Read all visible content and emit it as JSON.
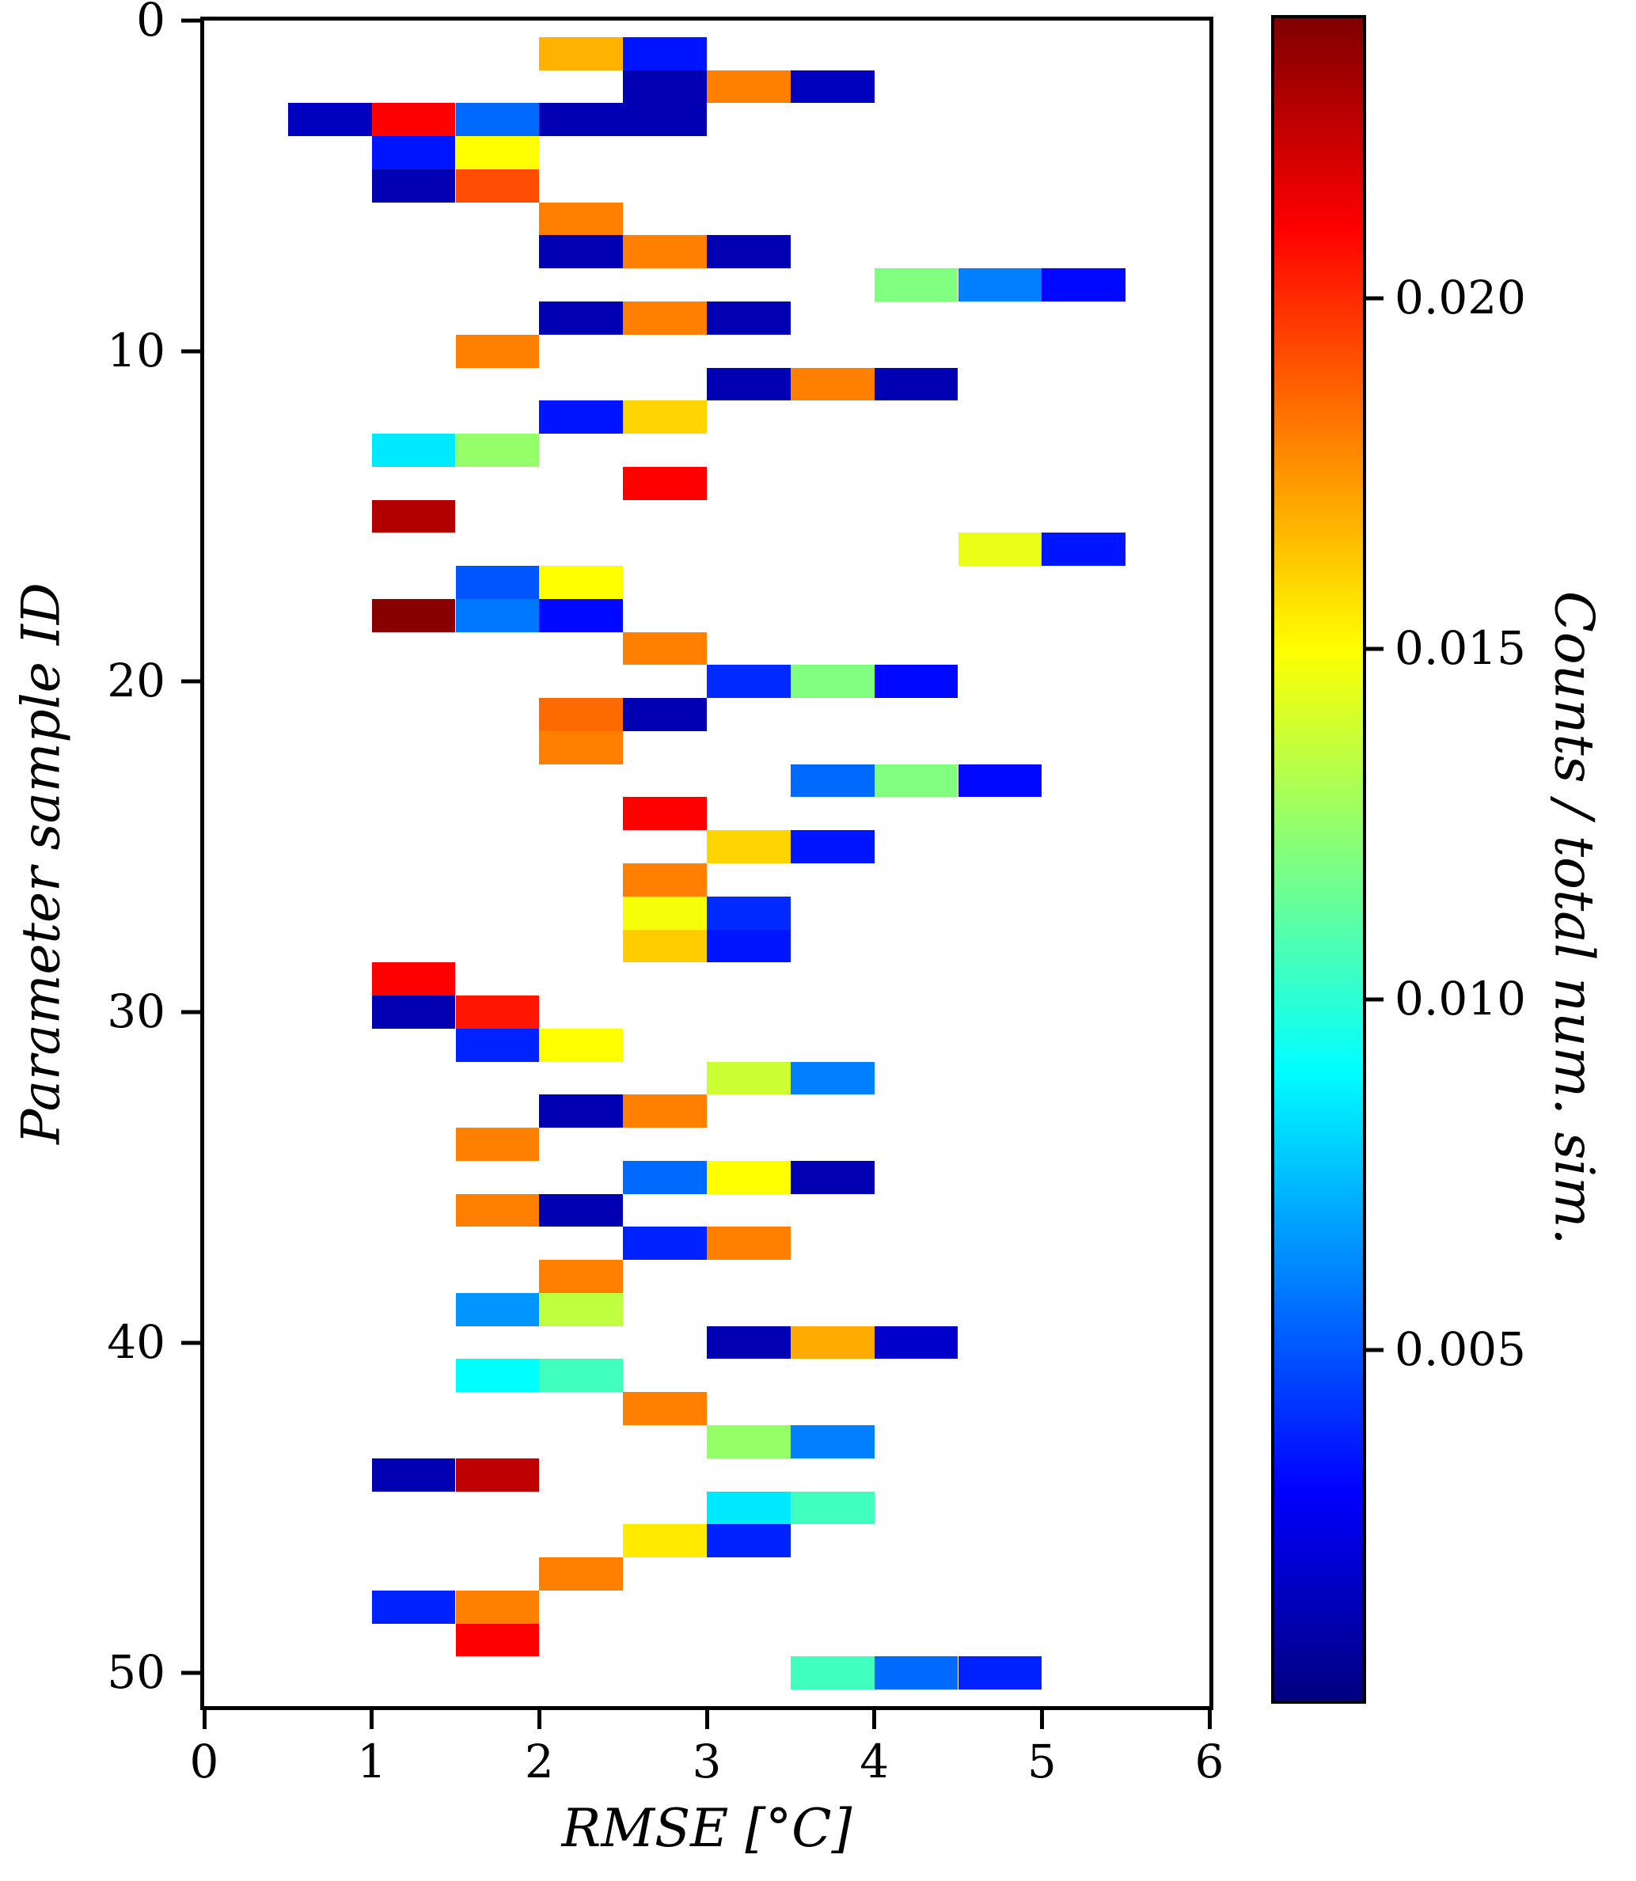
{
  "chart_data": {
    "type": "heatmap",
    "xlabel": "RMSE [°C]",
    "ylabel": "Parameter sample ID",
    "colorbar_label": "Counts / total num. sim.",
    "colormap": "jet",
    "x_range": [
      0,
      6
    ],
    "y_rows": 51,
    "x_ticks": [
      0,
      1,
      2,
      3,
      4,
      5,
      6
    ],
    "y_ticks": [
      0,
      10,
      20,
      30,
      40,
      50
    ],
    "vmin": 0,
    "vmax": 0.024,
    "bin_width_rmse": 0.5,
    "colorbar_ticks": [
      {
        "value": 0.02,
        "label": "0.020"
      },
      {
        "value": 0.015,
        "label": "0.015"
      },
      {
        "value": 0.01,
        "label": "0.010"
      },
      {
        "value": 0.005,
        "label": "0.005"
      }
    ],
    "cells": [
      [
        0,
        2.0,
        2.5,
        0.0168
      ],
      [
        0,
        2.5,
        3.0,
        0.0035
      ],
      [
        1,
        2.5,
        3.0,
        0.0012
      ],
      [
        1,
        3.0,
        3.5,
        0.018
      ],
      [
        1,
        3.5,
        4.0,
        0.0015
      ],
      [
        2,
        0.5,
        1.0,
        0.0015
      ],
      [
        2,
        1.0,
        1.5,
        0.021
      ],
      [
        2,
        1.5,
        2.0,
        0.0055
      ],
      [
        2,
        2.0,
        2.5,
        0.0012
      ],
      [
        2,
        2.5,
        3.0,
        0.0012
      ],
      [
        3,
        1.0,
        1.5,
        0.0035
      ],
      [
        3,
        1.5,
        2.0,
        0.015
      ],
      [
        4,
        1.0,
        1.5,
        0.0012
      ],
      [
        4,
        1.5,
        2.0,
        0.0192
      ],
      [
        5,
        2.0,
        2.5,
        0.018
      ],
      [
        6,
        2.0,
        2.5,
        0.0012
      ],
      [
        6,
        2.5,
        3.0,
        0.018
      ],
      [
        6,
        3.0,
        3.5,
        0.0012
      ],
      [
        7,
        4.0,
        4.5,
        0.012
      ],
      [
        7,
        4.5,
        5.0,
        0.006
      ],
      [
        7,
        5.0,
        5.5,
        0.0032
      ],
      [
        8,
        2.0,
        2.5,
        0.0012
      ],
      [
        8,
        2.5,
        3.0,
        0.018
      ],
      [
        8,
        3.0,
        3.5,
        0.0012
      ],
      [
        9,
        1.5,
        2.0,
        0.018
      ],
      [
        10,
        3.0,
        3.5,
        0.0012
      ],
      [
        10,
        3.5,
        4.0,
        0.018
      ],
      [
        10,
        4.0,
        4.5,
        0.0012
      ],
      [
        11,
        2.0,
        2.5,
        0.0035
      ],
      [
        11,
        2.5,
        3.0,
        0.016
      ],
      [
        12,
        1.0,
        1.5,
        0.0085
      ],
      [
        12,
        1.5,
        2.0,
        0.0125
      ],
      [
        13,
        2.5,
        3.0,
        0.021
      ],
      [
        14,
        1.0,
        1.5,
        0.0228
      ],
      [
        15,
        4.5,
        5.0,
        0.0145
      ],
      [
        15,
        5.0,
        5.5,
        0.0035
      ],
      [
        16,
        1.5,
        2.0,
        0.005
      ],
      [
        16,
        2.0,
        2.5,
        0.015
      ],
      [
        17,
        1.0,
        1.5,
        0.0238
      ],
      [
        17,
        1.5,
        2.0,
        0.0058
      ],
      [
        17,
        2.0,
        2.5,
        0.0032
      ],
      [
        18,
        2.5,
        3.0,
        0.018
      ],
      [
        19,
        3.0,
        3.5,
        0.004
      ],
      [
        19,
        3.5,
        4.0,
        0.012
      ],
      [
        19,
        4.0,
        4.5,
        0.0032
      ],
      [
        20,
        2.0,
        2.5,
        0.0185
      ],
      [
        20,
        2.5,
        3.0,
        0.0012
      ],
      [
        21,
        2.0,
        2.5,
        0.018
      ],
      [
        22,
        3.5,
        4.0,
        0.0055
      ],
      [
        22,
        4.0,
        4.5,
        0.012
      ],
      [
        22,
        4.5,
        5.0,
        0.0032
      ],
      [
        23,
        2.5,
        3.0,
        0.021
      ],
      [
        24,
        3.0,
        3.5,
        0.016
      ],
      [
        24,
        3.5,
        4.0,
        0.0035
      ],
      [
        25,
        2.5,
        3.0,
        0.018
      ],
      [
        26,
        2.5,
        3.0,
        0.0148
      ],
      [
        26,
        3.0,
        3.5,
        0.004
      ],
      [
        27,
        2.5,
        3.0,
        0.0162
      ],
      [
        27,
        3.0,
        3.5,
        0.0035
      ],
      [
        28,
        1.0,
        1.5,
        0.021
      ],
      [
        29,
        1.0,
        1.5,
        0.0012
      ],
      [
        29,
        1.5,
        2.0,
        0.0205
      ],
      [
        30,
        1.5,
        2.0,
        0.0038
      ],
      [
        30,
        2.0,
        2.5,
        0.015
      ],
      [
        31,
        3.0,
        3.5,
        0.0138
      ],
      [
        31,
        3.5,
        4.0,
        0.006
      ],
      [
        32,
        2.0,
        2.5,
        0.0012
      ],
      [
        32,
        2.5,
        3.0,
        0.018
      ],
      [
        33,
        1.5,
        2.0,
        0.018
      ],
      [
        34,
        2.5,
        3.0,
        0.0055
      ],
      [
        34,
        3.0,
        3.5,
        0.015
      ],
      [
        34,
        3.5,
        4.0,
        0.0012
      ],
      [
        35,
        1.5,
        2.0,
        0.018
      ],
      [
        35,
        2.0,
        2.5,
        0.0012
      ],
      [
        36,
        2.5,
        3.0,
        0.0038
      ],
      [
        36,
        3.0,
        3.5,
        0.018
      ],
      [
        37,
        2.0,
        2.5,
        0.018
      ],
      [
        38,
        1.5,
        2.0,
        0.0065
      ],
      [
        38,
        2.0,
        2.5,
        0.0135
      ],
      [
        39,
        3.0,
        3.5,
        0.0012
      ],
      [
        39,
        3.5,
        4.0,
        0.017
      ],
      [
        39,
        4.0,
        4.5,
        0.0018
      ],
      [
        40,
        1.5,
        2.0,
        0.009
      ],
      [
        40,
        2.0,
        2.5,
        0.0105
      ],
      [
        41,
        2.5,
        3.0,
        0.018
      ],
      [
        42,
        3.0,
        3.5,
        0.0125
      ],
      [
        42,
        3.5,
        4.0,
        0.006
      ],
      [
        43,
        1.0,
        1.5,
        0.0012
      ],
      [
        43,
        1.5,
        2.0,
        0.0225
      ],
      [
        44,
        3.0,
        3.5,
        0.0085
      ],
      [
        44,
        3.5,
        4.0,
        0.0105
      ],
      [
        45,
        2.5,
        3.0,
        0.0155
      ],
      [
        45,
        3.0,
        3.5,
        0.0038
      ],
      [
        46,
        2.0,
        2.5,
        0.018
      ],
      [
        47,
        1.0,
        1.5,
        0.0038
      ],
      [
        47,
        1.5,
        2.0,
        0.018
      ],
      [
        48,
        1.5,
        2.0,
        0.021
      ],
      [
        49,
        3.5,
        4.0,
        0.0105
      ],
      [
        49,
        4.0,
        4.5,
        0.0055
      ],
      [
        49,
        4.5,
        5.0,
        0.0038
      ]
    ]
  }
}
